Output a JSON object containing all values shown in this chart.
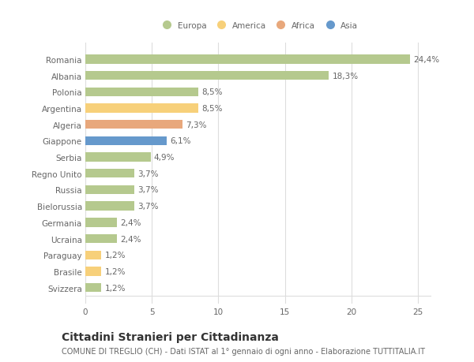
{
  "categories": [
    "Romania",
    "Albania",
    "Polonia",
    "Argentina",
    "Algeria",
    "Giappone",
    "Serbia",
    "Regno Unito",
    "Russia",
    "Bielorussia",
    "Germania",
    "Ucraina",
    "Paraguay",
    "Brasile",
    "Svizzera"
  ],
  "values": [
    24.4,
    18.3,
    8.5,
    8.5,
    7.3,
    6.1,
    4.9,
    3.7,
    3.7,
    3.7,
    2.4,
    2.4,
    1.2,
    1.2,
    1.2
  ],
  "labels": [
    "24,4%",
    "18,3%",
    "8,5%",
    "8,5%",
    "7,3%",
    "6,1%",
    "4,9%",
    "3,7%",
    "3,7%",
    "3,7%",
    "2,4%",
    "2,4%",
    "1,2%",
    "1,2%",
    "1,2%"
  ],
  "bar_colors": [
    "#b5c98e",
    "#b5c98e",
    "#b5c98e",
    "#f7d07a",
    "#e8a87c",
    "#6699cc",
    "#b5c98e",
    "#b5c98e",
    "#b5c98e",
    "#b5c98e",
    "#b5c98e",
    "#b5c98e",
    "#f7d07a",
    "#f7d07a",
    "#b5c98e"
  ],
  "legend_labels": [
    "Europa",
    "America",
    "Africa",
    "Asia"
  ],
  "legend_colors": [
    "#b5c98e",
    "#f7d07a",
    "#e8a87c",
    "#6699cc"
  ],
  "title": "Cittadini Stranieri per Cittadinanza",
  "subtitle": "COMUNE DI TREGLIO (CH) - Dati ISTAT al 1° gennaio di ogni anno - Elaborazione TUTTITALIA.IT",
  "xlim": [
    0,
    26
  ],
  "xticks": [
    0,
    5,
    10,
    15,
    20,
    25
  ],
  "bg_color": "#ffffff",
  "grid_color": "#dddddd",
  "bar_height": 0.55,
  "label_fontsize": 7.5,
  "tick_fontsize": 7.5,
  "title_fontsize": 10,
  "subtitle_fontsize": 7
}
